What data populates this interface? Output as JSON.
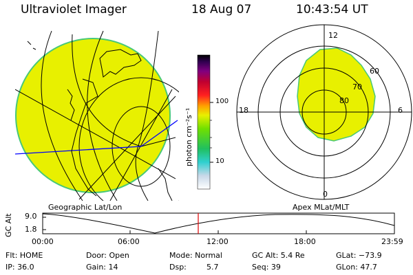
{
  "header": {
    "instrument": "Ultraviolet Imager",
    "date": "18 Aug 07",
    "time": "10:43:54 UT"
  },
  "colorbar": {
    "unit": "photon cm⁻²s⁻¹",
    "tick_100": "100",
    "tick_10": "10"
  },
  "polar": {
    "noon": "12",
    "dusk": "18",
    "dawn": "6",
    "midnight": "0",
    "lat_60": "60",
    "lat_70": "70",
    "lat_80": "80"
  },
  "captions": {
    "left": "Geographic Lat/Lon",
    "right": "Apex MLat/MLT"
  },
  "altitude_plot": {
    "ylabel": "GC Alt",
    "ytick_top": "9.0",
    "ytick_bottom": "1.8",
    "xticks": [
      "00:00",
      "06:00",
      "12:00",
      "18:00",
      "23:59"
    ]
  },
  "info": {
    "flt": "Flt: HOME",
    "ip": "IP: 36.0",
    "door": "Door: Open",
    "gain": "Gain: 14",
    "mode": "Mode: Normal",
    "dsp_label": "Dsp:",
    "dsp_value": "5.7",
    "gcalt": "GC Alt: 5.4 Re",
    "seq": "Seq: 39",
    "glat": "GLat: −73.9",
    "glon": "GLon:  47.7"
  },
  "colors": {
    "aurora_fill": "#e8f000",
    "aurora_edge": "#48c878",
    "cursor": "#e00000"
  }
}
